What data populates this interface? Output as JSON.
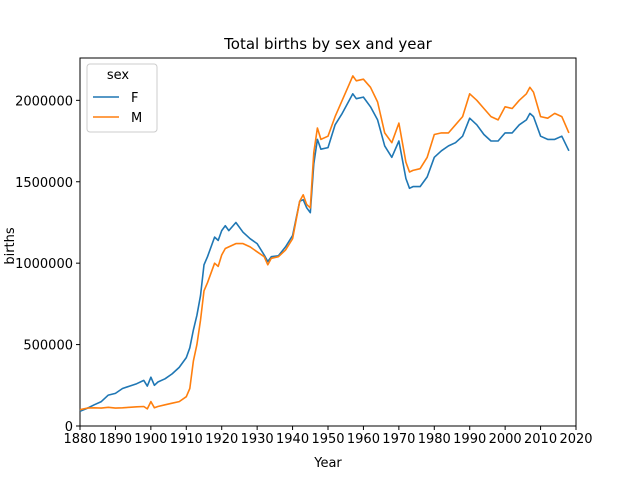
{
  "chart_data": {
    "type": "line",
    "title": "Total births by sex and year",
    "xlabel": "Year",
    "ylabel": "births",
    "xlim": [
      1880,
      2020
    ],
    "ylim": [
      0,
      2260000
    ],
    "x_ticks": [
      1880,
      1890,
      1900,
      1910,
      1920,
      1930,
      1940,
      1950,
      1960,
      1970,
      1980,
      1990,
      2000,
      2010,
      2020
    ],
    "y_ticks": [
      0,
      500000,
      1000000,
      1500000,
      2000000
    ],
    "grid": false,
    "legend": {
      "title": "sex",
      "placement": "top-left"
    },
    "x": [
      1880,
      1882,
      1884,
      1886,
      1888,
      1890,
      1892,
      1894,
      1896,
      1898,
      1899,
      1900,
      1901,
      1902,
      1904,
      1906,
      1908,
      1910,
      1911,
      1912,
      1913,
      1914,
      1915,
      1916,
      1918,
      1919,
      1920,
      1921,
      1922,
      1924,
      1926,
      1928,
      1930,
      1932,
      1933,
      1934,
      1936,
      1938,
      1940,
      1942,
      1943,
      1944,
      1945,
      1946,
      1947,
      1948,
      1950,
      1952,
      1954,
      1956,
      1957,
      1958,
      1960,
      1962,
      1964,
      1966,
      1968,
      1970,
      1972,
      1973,
      1974,
      1976,
      1978,
      1980,
      1982,
      1984,
      1986,
      1988,
      1990,
      1992,
      1994,
      1996,
      1998,
      2000,
      2002,
      2004,
      2006,
      2007,
      2008,
      2010,
      2012,
      2014,
      2016,
      2018
    ],
    "series": [
      {
        "name": "F",
        "color": "#1f77b4",
        "values": [
          90000,
          108000,
          130000,
          150000,
          190000,
          200000,
          230000,
          245000,
          260000,
          280000,
          245000,
          300000,
          250000,
          270000,
          290000,
          320000,
          360000,
          420000,
          480000,
          590000,
          680000,
          800000,
          990000,
          1040000,
          1160000,
          1140000,
          1200000,
          1230000,
          1200000,
          1250000,
          1190000,
          1150000,
          1120000,
          1050000,
          1010000,
          1040000,
          1045000,
          1100000,
          1170000,
          1380000,
          1390000,
          1340000,
          1310000,
          1610000,
          1760000,
          1700000,
          1710000,
          1850000,
          1920000,
          2000000,
          2040000,
          2010000,
          2020000,
          1960000,
          1880000,
          1720000,
          1650000,
          1750000,
          1520000,
          1460000,
          1470000,
          1470000,
          1530000,
          1650000,
          1690000,
          1720000,
          1740000,
          1780000,
          1890000,
          1850000,
          1790000,
          1750000,
          1750000,
          1800000,
          1800000,
          1850000,
          1880000,
          1920000,
          1900000,
          1780000,
          1760000,
          1760000,
          1780000,
          1690000
        ]
      },
      {
        "name": "M",
        "color": "#ff7f0e",
        "values": [
          100000,
          110000,
          112000,
          110000,
          115000,
          110000,
          112000,
          115000,
          118000,
          120000,
          105000,
          150000,
          112000,
          120000,
          130000,
          140000,
          150000,
          180000,
          230000,
          400000,
          500000,
          650000,
          830000,
          880000,
          1000000,
          980000,
          1050000,
          1090000,
          1100000,
          1120000,
          1120000,
          1100000,
          1070000,
          1040000,
          990000,
          1030000,
          1040000,
          1080000,
          1150000,
          1380000,
          1420000,
          1360000,
          1340000,
          1680000,
          1830000,
          1760000,
          1780000,
          1900000,
          2000000,
          2100000,
          2150000,
          2120000,
          2130000,
          2080000,
          1990000,
          1800000,
          1740000,
          1860000,
          1620000,
          1560000,
          1570000,
          1580000,
          1650000,
          1790000,
          1800000,
          1800000,
          1850000,
          1900000,
          2040000,
          2000000,
          1950000,
          1900000,
          1880000,
          1960000,
          1950000,
          2000000,
          2040000,
          2080000,
          2050000,
          1900000,
          1890000,
          1920000,
          1900000,
          1800000
        ]
      }
    ]
  }
}
